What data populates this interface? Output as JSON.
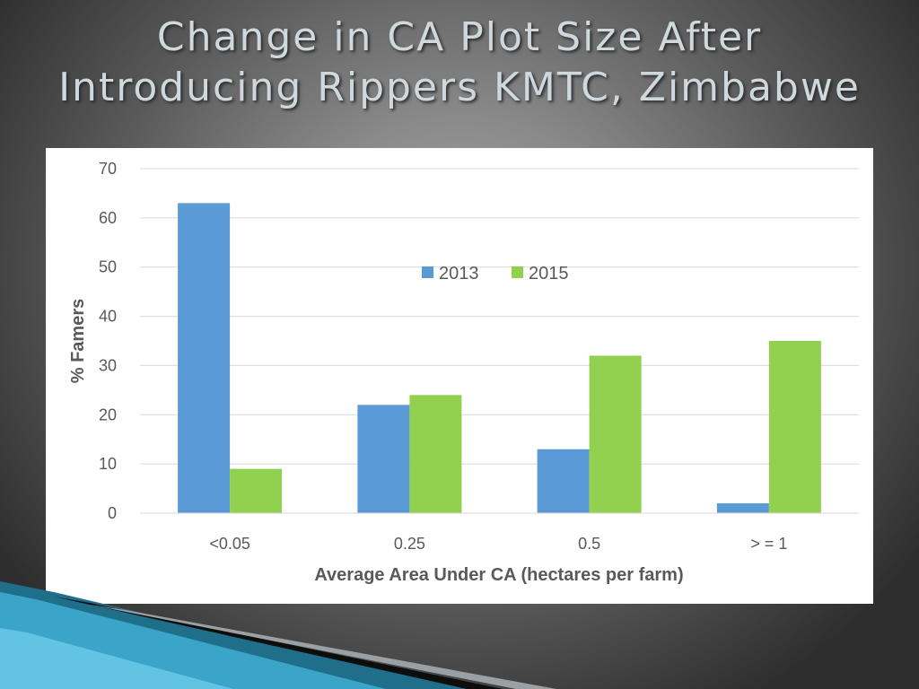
{
  "slide": {
    "title_line1": "Change in CA Plot Size After",
    "title_line2": "Introducing Rippers KMTC, Zimbabwe"
  },
  "colors": {
    "series_2013": "#5b9bd5",
    "series_2015": "#92d050",
    "gridline": "#d9d9d9",
    "text": "#595959"
  },
  "chart_data": {
    "type": "bar",
    "categories": [
      "<0.05",
      "0.25",
      "0.5",
      "> = 1"
    ],
    "series": [
      {
        "name": "2013",
        "values": [
          63,
          22,
          13,
          2
        ]
      },
      {
        "name": "2015",
        "values": [
          9,
          24,
          32,
          35
        ]
      }
    ],
    "xlabel": "Average Area Under CA (hectares per farm)",
    "ylabel": "% Famers",
    "ylim": [
      0,
      70
    ],
    "yticks": [
      0,
      10,
      20,
      30,
      40,
      50,
      60,
      70
    ],
    "grid": true,
    "legend_position": "top-center"
  }
}
